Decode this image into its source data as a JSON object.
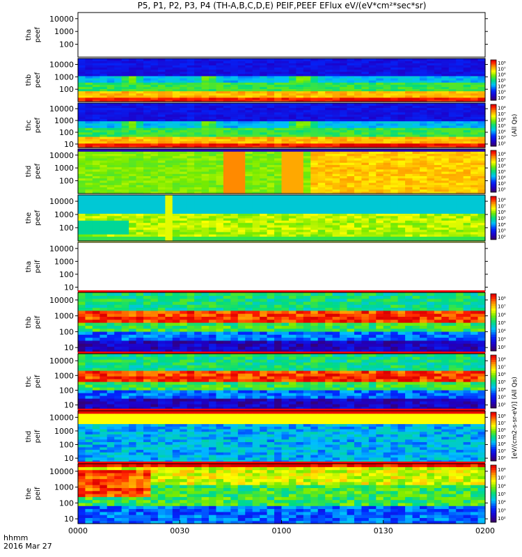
{
  "chart_data": {
    "type": "heatmap",
    "title": "P5, P1, P2, P3, P4 (TH-A,B,C,D,E) PEIF,PEEF EFlux eV/(eV*cm²*sec*sr)",
    "x_axis": {
      "tick_labels": [
        "0000",
        "0030",
        "0100",
        "0130",
        "0200"
      ],
      "label_line1": "hhmm",
      "label_line2": "2016 Mar 27"
    },
    "colorbar_label_short": "(All Qs)",
    "colorbar_label_long": "[eV/(cm2-s-sr-eV)] (All Qs)",
    "colorbar_ticks": [
      "10²",
      "10³",
      "10⁴",
      "10⁵",
      "10⁶",
      "10⁷",
      "10⁸"
    ],
    "panels": [
      {
        "probe": "tha",
        "species": "peef",
        "label_line1": "tha",
        "label_line2": "peef",
        "y_ticks": [
          "10000",
          "1000",
          "100"
        ],
        "y_range": [
          10,
          30000
        ],
        "has_data": false,
        "colorbar": false,
        "shape": "none"
      },
      {
        "probe": "thb",
        "species": "peef",
        "label_line1": "thb",
        "label_line2": "peef",
        "y_ticks": [
          "10000",
          "1000",
          "100"
        ],
        "y_range": [
          10,
          30000
        ],
        "has_data": true,
        "colorbar": true,
        "shape": "electron"
      },
      {
        "probe": "thc",
        "species": "peef",
        "label_line1": "thc",
        "label_line2": "peef",
        "y_ticks": [
          "10000",
          "1000",
          "100",
          "10"
        ],
        "y_range": [
          5,
          30000
        ],
        "has_data": true,
        "colorbar": true,
        "shape": "electron"
      },
      {
        "probe": "thd",
        "species": "peef",
        "label_line1": "thd",
        "label_line2": "peef",
        "y_ticks": [
          "10000",
          "1000",
          "100"
        ],
        "y_range": [
          10,
          30000
        ],
        "has_data": true,
        "colorbar": true,
        "shape": "warm"
      },
      {
        "probe": "the",
        "species": "peef",
        "label_line1": "the",
        "label_line2": "peef",
        "y_ticks": [
          "10000",
          "1000",
          "100"
        ],
        "y_range": [
          10,
          30000
        ],
        "has_data": true,
        "colorbar": true,
        "shape": "mixed"
      },
      {
        "probe": "tha",
        "species": "peif",
        "label_line1": "tha",
        "label_line2": "peif",
        "y_ticks": [
          "10000",
          "1000",
          "100",
          "10"
        ],
        "y_range": [
          5,
          30000
        ],
        "has_data": false,
        "colorbar": false,
        "shape": "none"
      },
      {
        "probe": "thb",
        "species": "peif",
        "label_line1": "thb",
        "label_line2": "peif",
        "y_ticks": [
          "10000",
          "1000",
          "100",
          "10"
        ],
        "y_range": [
          5,
          30000
        ],
        "has_data": true,
        "colorbar": true,
        "shape": "ion"
      },
      {
        "probe": "thc",
        "species": "peif",
        "label_line1": "thc",
        "label_line2": "peif",
        "y_ticks": [
          "10000",
          "1000",
          "100",
          "10"
        ],
        "y_range": [
          5,
          30000
        ],
        "has_data": true,
        "colorbar": true,
        "shape": "ion"
      },
      {
        "probe": "thd",
        "species": "peif",
        "label_line1": "thd",
        "label_line2": "peif",
        "y_ticks": [
          "10000",
          "1000",
          "100",
          "10"
        ],
        "y_range": [
          5,
          30000
        ],
        "has_data": true,
        "colorbar": true,
        "shape": "ionhot"
      },
      {
        "probe": "the",
        "species": "peif",
        "label_line1": "the",
        "label_line2": "peif",
        "y_ticks": [
          "10000",
          "1000",
          "100",
          "10"
        ],
        "y_range": [
          5,
          30000
        ],
        "has_data": true,
        "colorbar": true,
        "shape": "ionburst"
      }
    ]
  }
}
